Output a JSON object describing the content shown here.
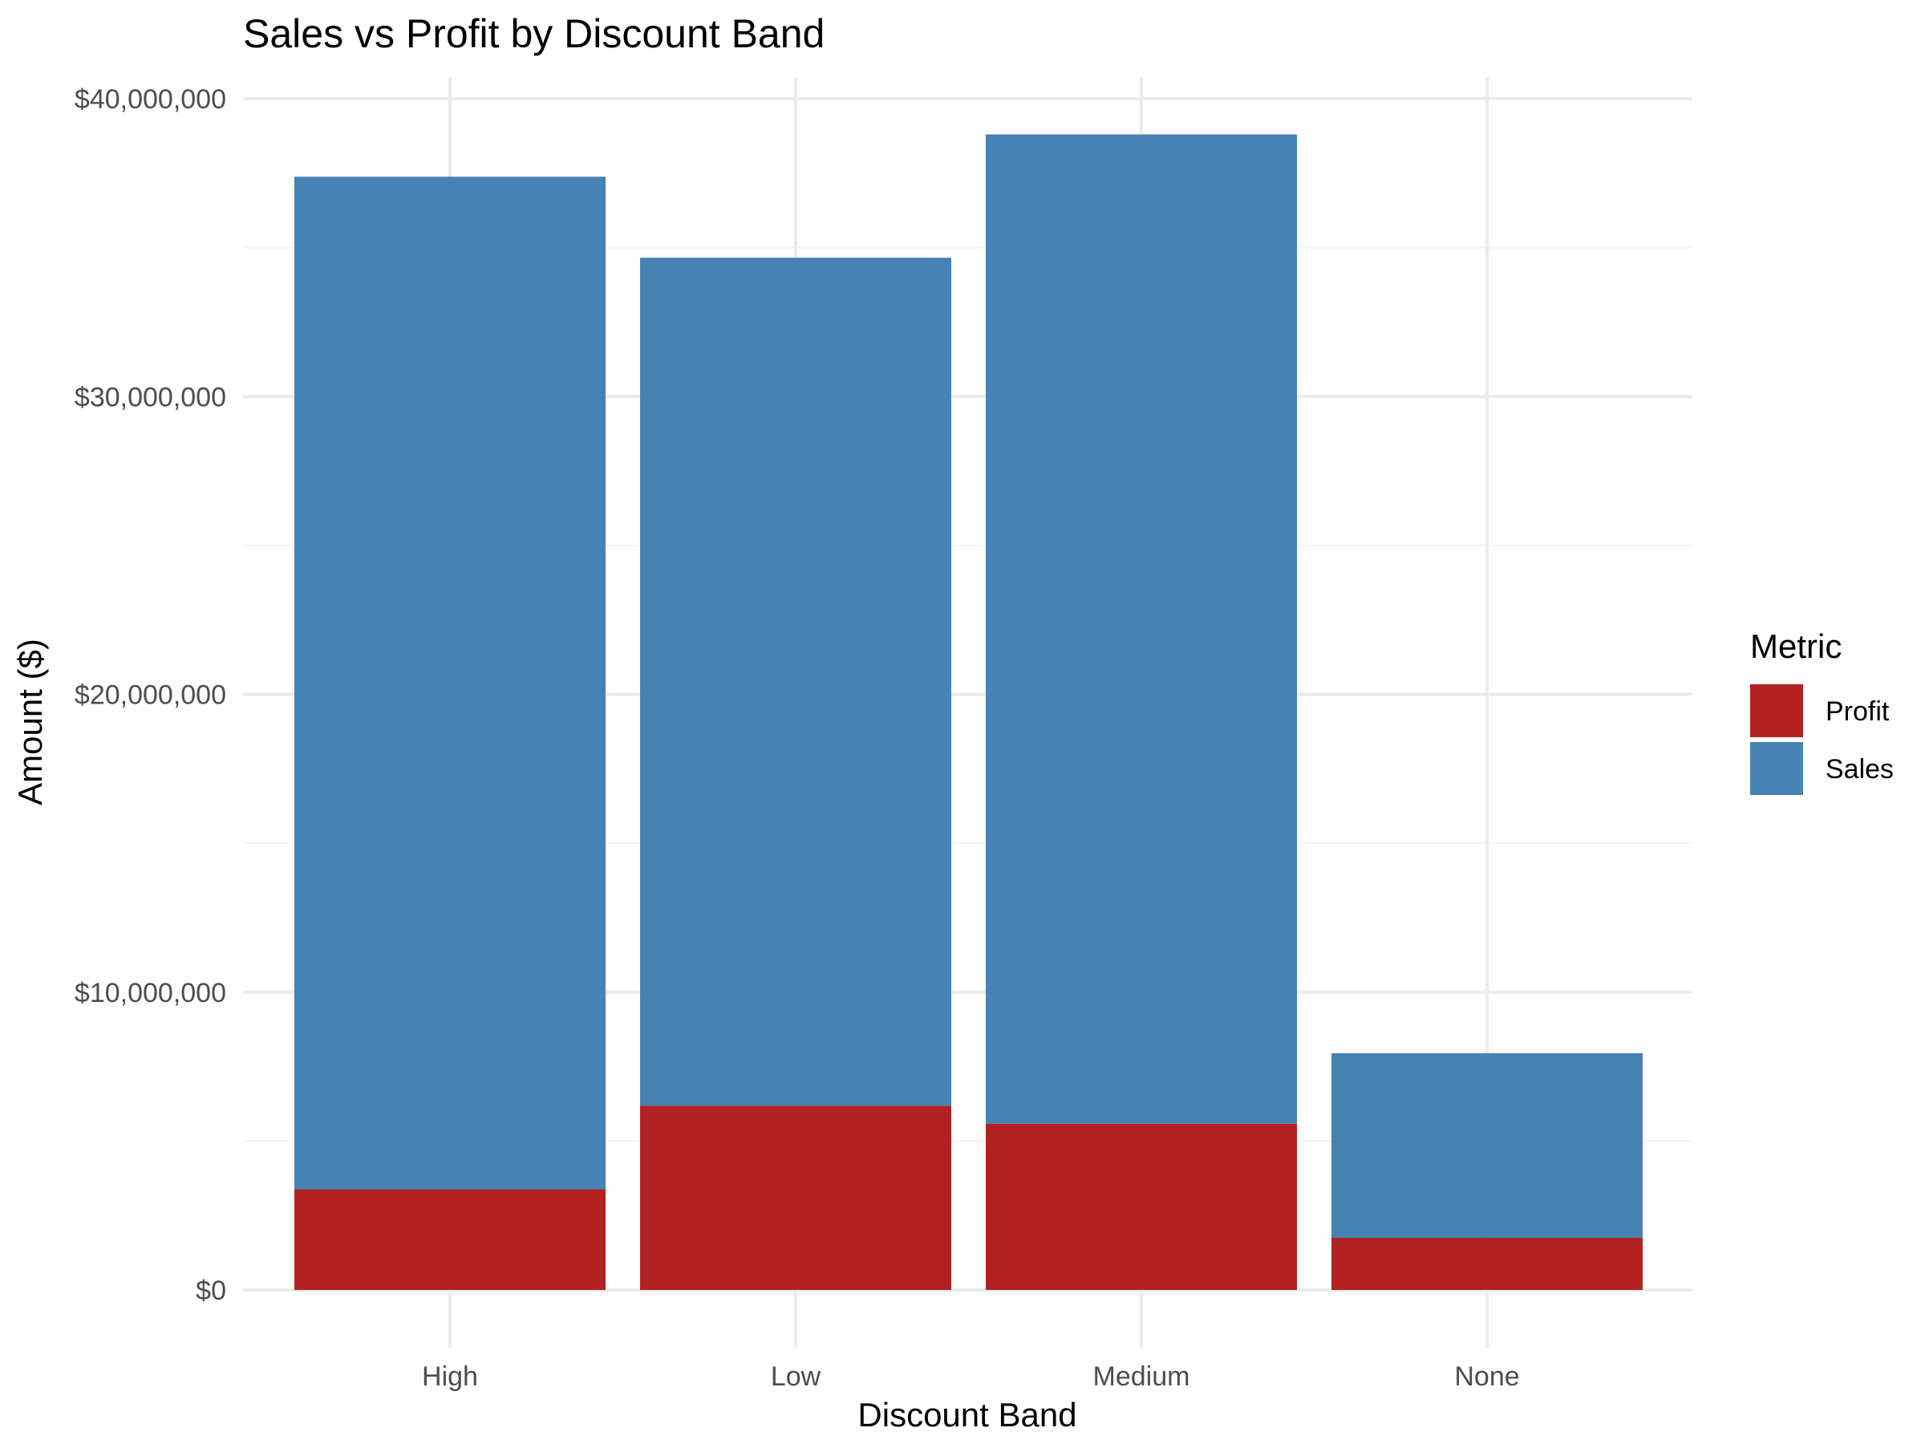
{
  "chart_data": {
    "type": "bar",
    "stacked": true,
    "title": "Sales vs Profit by Discount Band",
    "xlabel": "Discount Band",
    "ylabel": "Amount ($)",
    "categories": [
      "High",
      "Low",
      "Medium",
      "None"
    ],
    "series": [
      {
        "name": "Profit",
        "color": "#B22222",
        "values": [
          3380000,
          6190000,
          5580000,
          1750000
        ]
      },
      {
        "name": "Sales",
        "color": "#4682B4",
        "values": [
          34000000,
          28470000,
          33220000,
          6200000
        ]
      }
    ],
    "ylim": [
      0,
      40000000
    ],
    "yticks": [
      0,
      10000000,
      20000000,
      30000000,
      40000000
    ],
    "ytick_labels": [
      "$0",
      "$10,000,000",
      "$20,000,000",
      "$30,000,000",
      "$40,000,000"
    ],
    "legend": {
      "title": "Metric",
      "position": "right",
      "order": [
        "Profit",
        "Sales"
      ]
    },
    "grid": true
  }
}
